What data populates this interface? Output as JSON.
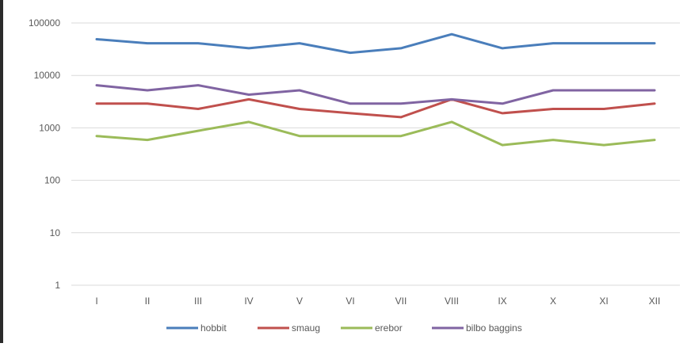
{
  "chart_data": {
    "type": "line",
    "title": "",
    "xlabel": "",
    "ylabel": "",
    "y_scale": "log",
    "ylim": [
      1,
      100000
    ],
    "y_ticks": [
      1,
      10,
      100,
      1000,
      10000,
      100000
    ],
    "y_tick_labels": [
      "1",
      "10",
      "100",
      "1000",
      "10000",
      "100000"
    ],
    "categories": [
      "I",
      "II",
      "III",
      "IV",
      "V",
      "VI",
      "VII",
      "VIII",
      "IX",
      "X",
      "XI",
      "XII"
    ],
    "grid": true,
    "legend_position": "bottom",
    "series": [
      {
        "name": "hobbit",
        "color": "#4a7ebb",
        "values": [
          49000,
          41000,
          41000,
          33000,
          41000,
          27000,
          33000,
          61000,
          33000,
          41000,
          41000,
          41000
        ]
      },
      {
        "name": "smaug",
        "color": "#c0504d",
        "values": [
          2900,
          2900,
          2300,
          3500,
          2300,
          1900,
          1600,
          3500,
          1900,
          2300,
          2300,
          2900
        ]
      },
      {
        "name": "erebor",
        "color": "#9bbb59",
        "values": [
          700,
          590,
          880,
          1300,
          700,
          700,
          700,
          1300,
          470,
          590,
          470,
          590
        ]
      },
      {
        "name": "bilbo baggins",
        "color": "#8064a2",
        "values": [
          6500,
          5200,
          6500,
          4300,
          5200,
          2900,
          2900,
          3500,
          2900,
          5200,
          5200,
          5200
        ]
      }
    ]
  }
}
